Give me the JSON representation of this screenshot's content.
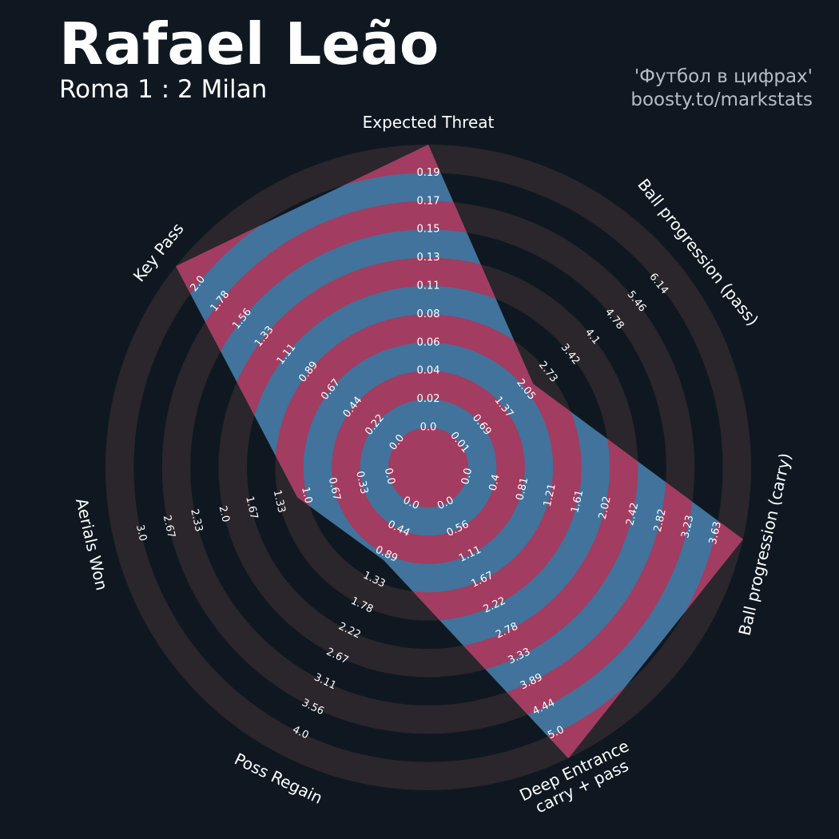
{
  "header": {
    "title": "Rafael Leão",
    "subtitle": "Roma 1 : 2 Milan",
    "credit_line1": "'Футбол в цифрах'",
    "credit_line2": "boosty.to/markstats"
  },
  "colors": {
    "background": "#0f1820",
    "ring": "#2a262c",
    "player_fill": "#41739c",
    "player_ring": "#a23c60"
  },
  "chart_data": {
    "type": "radar",
    "title": "Rafael Leão",
    "subtitle": "Roma 1 : 2 Milan",
    "grid": true,
    "axes": [
      {
        "label": "Expected Threat",
        "ticks": [
          "0.0",
          "0.02",
          "0.04",
          "0.06",
          "0.08",
          "0.11",
          "0.13",
          "0.15",
          "0.17",
          "0.19"
        ],
        "range": [
          0.0,
          0.19
        ],
        "value": 0.19
      },
      {
        "label": "Ball progression (pass)",
        "ticks": [
          "0.01",
          "0.69",
          "1.37",
          "2.05",
          "2.73",
          "3.42",
          "4.1",
          "4.78",
          "5.46",
          "6.14"
        ],
        "range": [
          0.01,
          6.14
        ],
        "value": 2.05
      },
      {
        "label": "Ball progression (carry)",
        "ticks": [
          "0.0",
          "0.4",
          "0.81",
          "1.21",
          "1.61",
          "2.02",
          "2.42",
          "2.82",
          "3.23",
          "3.63"
        ],
        "range": [
          0.0,
          3.63
        ],
        "value": 3.63
      },
      {
        "label": "Deep Entrance\ncarry + pass",
        "ticks": [
          "0.0",
          "0.56",
          "1.11",
          "1.67",
          "2.22",
          "2.78",
          "3.33",
          "3.89",
          "4.44",
          "5.0"
        ],
        "range": [
          0.0,
          5.0
        ],
        "value": 5.0
      },
      {
        "label": "Poss Regain",
        "ticks": [
          "0.0",
          "0.44",
          "0.89",
          "1.33",
          "1.78",
          "2.22",
          "2.67",
          "3.11",
          "3.56",
          "4.0"
        ],
        "range": [
          0.0,
          4.0
        ],
        "value": 0.89
      },
      {
        "label": "Aerials Won",
        "ticks": [
          "0.0",
          "0.33",
          "0.67",
          "1.0",
          "1.33",
          "1.67",
          "2.0",
          "2.33",
          "2.67",
          "3.0"
        ],
        "range": [
          0.0,
          3.0
        ],
        "value": 1.0
      },
      {
        "label": "Key Pass",
        "ticks": [
          "0.0",
          "0.22",
          "0.44",
          "0.67",
          "0.89",
          "1.11",
          "1.33",
          "1.56",
          "1.78",
          "2.0"
        ],
        "range": [
          0.0,
          2.0
        ],
        "value": 2.0
      }
    ]
  }
}
